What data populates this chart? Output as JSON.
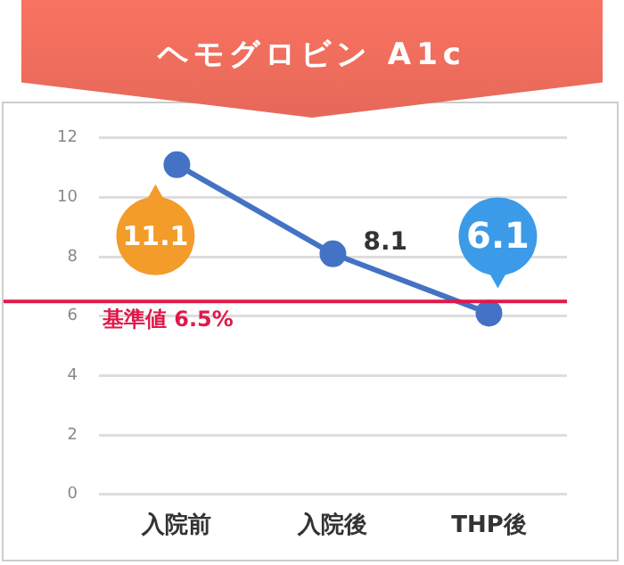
{
  "chart_data": {
    "type": "line",
    "title": "ヘモグロビン A1c",
    "categories": [
      "入院前",
      "入院後",
      "THP後"
    ],
    "series": [
      {
        "color": "#4472c4",
        "values": [
          11.1,
          8.1,
          6.1
        ]
      }
    ],
    "ylim": [
      0,
      12
    ],
    "yticks": [
      0,
      2,
      4,
      6,
      8,
      10,
      12
    ],
    "grid": "y",
    "legend": false,
    "marker": "circle",
    "line_style": "solid",
    "data_labels": true,
    "ref_lines": [
      {
        "axis": "y",
        "value": 6.5,
        "label": "基準値 6.5%",
        "color": "#e0194a"
      }
    ]
  }
}
